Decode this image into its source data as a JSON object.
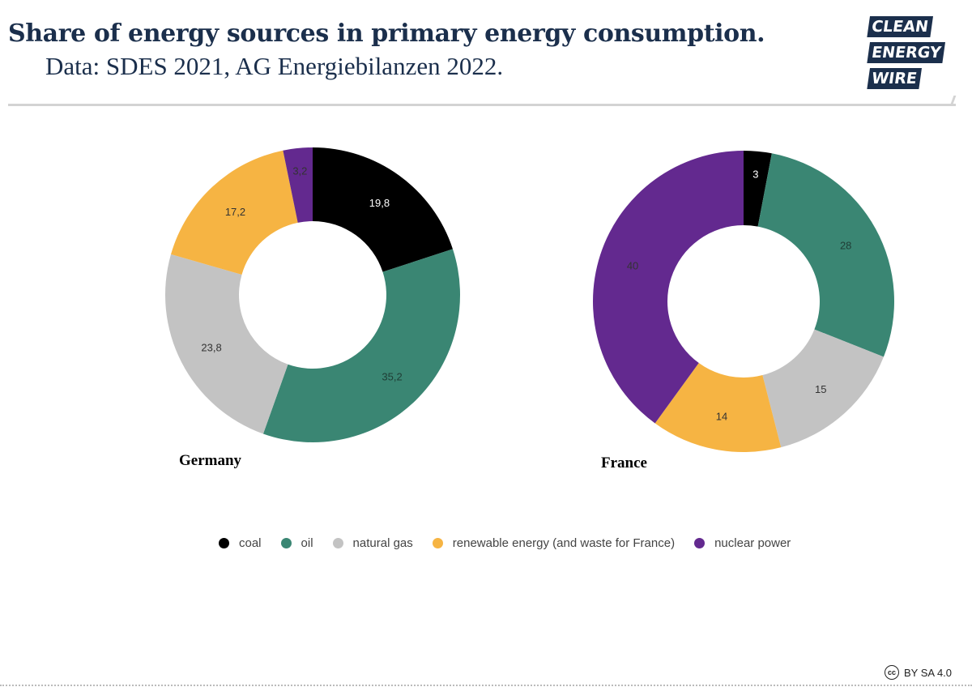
{
  "header": {
    "title": "Share of energy sources in primary energy consumption.",
    "subtitle": "Data: SDES 2021, AG Energiebilanzen 2022."
  },
  "logo": {
    "lines": [
      "CLEAN",
      "ENERGY",
      "WIRE"
    ],
    "color": "#1b2f4c"
  },
  "colors": {
    "coal": "#000000",
    "oil": "#3a8673",
    "natural_gas": "#c3c3c3",
    "renewable": "#f6b443",
    "nuclear": "#63298f"
  },
  "chart_data": [
    {
      "type": "pie",
      "title": "Germany",
      "categories": [
        "coal",
        "oil",
        "natural gas",
        "renewable energy (and waste for France)",
        "nuclear power"
      ],
      "values": [
        19.8,
        35.2,
        23.8,
        17.2,
        3.2
      ],
      "data_labels": [
        "19,8",
        "35,2",
        "23,8",
        "17,2",
        "3,2"
      ],
      "colors": [
        "#000000",
        "#3a8673",
        "#c3c3c3",
        "#f6b443",
        "#63298f"
      ],
      "donut": true
    },
    {
      "type": "pie",
      "title": "France",
      "categories": [
        "coal",
        "oil",
        "natural gas",
        "renewable energy (and waste for France)",
        "nuclear power"
      ],
      "values": [
        3,
        28,
        15,
        14,
        40
      ],
      "data_labels": [
        "3",
        "28",
        "15",
        "14",
        "40"
      ],
      "colors": [
        "#000000",
        "#3a8673",
        "#c3c3c3",
        "#f6b443",
        "#63298f"
      ],
      "donut": true
    }
  ],
  "legend": {
    "placement": "bottom-center",
    "items": [
      {
        "label": "coal",
        "color": "#000000"
      },
      {
        "label": "oil",
        "color": "#3a8673"
      },
      {
        "label": "natural gas",
        "color": "#c3c3c3"
      },
      {
        "label": "renewable energy (and waste for France)",
        "color": "#f6b443"
      },
      {
        "label": "nuclear power",
        "color": "#63298f"
      }
    ]
  },
  "footer": {
    "cc_icon": "cc",
    "license": "BY SA 4.0"
  }
}
